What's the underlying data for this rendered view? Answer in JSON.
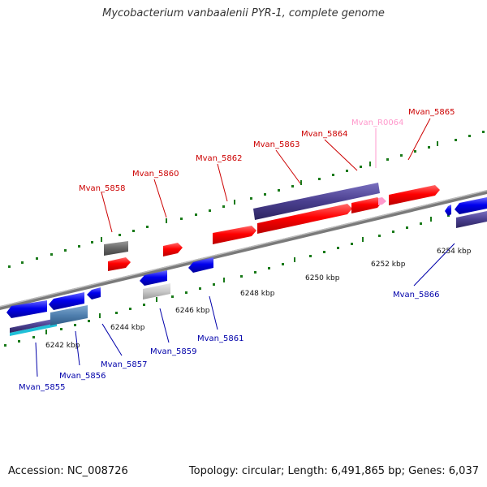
{
  "title": "Mycobacterium vanbaalenii PYR-1, complete genome",
  "footer": {
    "accession": "Accession: NC_008726",
    "stats": "Topology: circular; Length: 6,491,865 bp; Genes: 6,037"
  },
  "colors": {
    "forward": "#ff0000",
    "reverse": "#0000ee",
    "rna": "#ff99cc",
    "label_forward": "#cc0000",
    "label_reverse": "#0000aa",
    "backbone": "#7a7a7a",
    "ticks": "#1a7a1a",
    "purple_block": "#4a3f8f"
  },
  "scale_labels": [
    "6242 kbp",
    "6244 kbp",
    "6246 kbp",
    "6248 kbp",
    "6250 kbp",
    "6252 kbp",
    "6254 kbp"
  ],
  "genes_forward": [
    "Mvan_5858",
    "Mvan_5860",
    "Mvan_5862",
    "Mvan_5863",
    "Mvan_5864",
    "Mvan_R0064",
    "Mvan_5865"
  ],
  "genes_reverse": [
    "Mvan_5855",
    "Mvan_5856",
    "Mvan_5857",
    "Mvan_5859",
    "Mvan_5861",
    "Mvan_5866"
  ]
}
